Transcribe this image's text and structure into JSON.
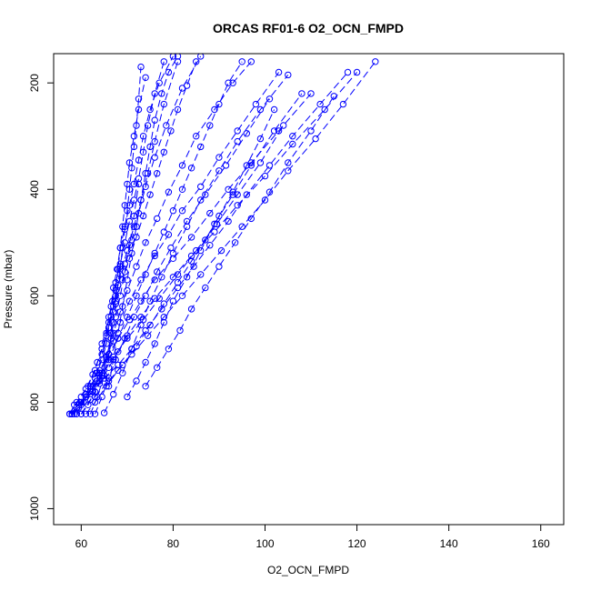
{
  "chart_data": {
    "type": "line",
    "title": "ORCAS RF01-6 O2_OCN_FMPD",
    "xlabel": "O2_OCN_FMPD",
    "ylabel": "Pressure (mbar)",
    "xlim": [
      54,
      165
    ],
    "ylim": [
      1030,
      145
    ],
    "y_inverted": true,
    "x_ticks": [
      60,
      80,
      100,
      120,
      140,
      160
    ],
    "y_ticks": [
      200,
      400,
      600,
      800,
      1000
    ],
    "grid": false,
    "legend": "none",
    "series_color": "#0000ff",
    "marker": "open-circle",
    "line_style": "dashed",
    "series": [
      {
        "x": [
          57.5,
          58.5,
          60,
          61.5,
          62.5,
          63.5,
          64.5,
          65.5,
          66,
          66.8,
          67.5,
          68.5,
          69.5,
          70.5,
          71.5,
          72.5,
          73.5,
          74.5,
          76,
          78
        ],
        "y": [
          822,
          805,
          790,
          770,
          748,
          725,
          700,
          670,
          640,
          610,
          575,
          540,
          500,
          460,
          420,
          380,
          330,
          280,
          220,
          160
        ]
      },
      {
        "x": [
          58,
          59,
          61,
          63,
          64.5,
          65.5,
          66,
          66.5,
          67,
          67.8,
          68.5,
          69.5,
          70.5,
          71.5,
          72.5,
          73.5,
          75,
          77,
          80
        ],
        "y": [
          822,
          810,
          785,
          755,
          720,
          690,
          660,
          620,
          585,
          550,
          510,
          470,
          430,
          390,
          345,
          300,
          250,
          200,
          150
        ]
      },
      {
        "x": [
          59,
          60.5,
          62,
          63.5,
          64.5,
          65.5,
          66.5,
          67.5,
          68.5,
          70,
          71.5,
          73,
          74.5,
          76,
          78,
          81
        ],
        "y": [
          822,
          800,
          775,
          745,
          710,
          675,
          640,
          600,
          560,
          515,
          470,
          420,
          370,
          310,
          240,
          160
        ]
      },
      {
        "x": [
          57.5,
          59,
          61,
          63,
          64.5,
          66,
          67,
          68,
          69.5,
          71,
          72.5,
          74,
          76,
          78.5,
          82,
          86
        ],
        "y": [
          822,
          800,
          775,
          740,
          700,
          660,
          620,
          580,
          540,
          495,
          445,
          395,
          340,
          280,
          210,
          150
        ]
      },
      {
        "x": [
          60,
          61.5,
          63,
          64.5,
          65.5,
          66.5,
          67,
          67.5,
          68,
          68.5,
          69,
          69.5,
          70,
          70.5,
          71,
          71.5,
          72,
          72.5,
          73
        ],
        "y": [
          822,
          805,
          780,
          750,
          715,
          680,
          650,
          615,
          580,
          545,
          510,
          475,
          440,
          400,
          360,
          320,
          280,
          230,
          170
        ]
      },
      {
        "x": [
          62,
          63.5,
          65,
          66,
          66.5,
          67,
          67.5,
          68,
          68.5,
          69,
          69.5,
          70,
          70.5,
          71.5,
          72.5,
          74
        ],
        "y": [
          822,
          790,
          750,
          710,
          670,
          630,
          590,
          550,
          510,
          470,
          430,
          390,
          350,
          300,
          250,
          190
        ]
      },
      {
        "x": [
          58,
          60,
          62.5,
          64.5,
          66,
          67,
          68.5,
          70,
          72,
          74,
          76.5,
          79,
          82,
          85,
          89,
          93,
          97
        ],
        "y": [
          822,
          805,
          780,
          745,
          710,
          670,
          630,
          590,
          545,
          500,
          455,
          405,
          355,
          300,
          250,
          200,
          160
        ]
      },
      {
        "x": [
          59,
          61,
          63.5,
          65.5,
          67,
          68.5,
          70.5,
          73,
          76,
          79,
          82,
          86,
          90,
          94,
          98,
          103
        ],
        "y": [
          822,
          790,
          760,
          720,
          685,
          650,
          610,
          570,
          525,
          485,
          440,
          395,
          340,
          290,
          240,
          180
        ]
      },
      {
        "x": [
          58.5,
          60,
          62,
          64,
          66,
          68,
          70.5,
          73,
          76,
          80,
          84,
          88,
          92,
          97,
          103,
          110
        ],
        "y": [
          822,
          800,
          770,
          740,
          710,
          680,
          645,
          610,
          570,
          530,
          490,
          445,
          400,
          350,
          290,
          220
        ]
      },
      {
        "x": [
          60,
          62,
          64,
          66,
          68,
          70,
          73,
          76,
          80,
          84,
          89,
          94,
          100,
          106,
          113,
          120
        ],
        "y": [
          822,
          795,
          765,
          735,
          705,
          675,
          640,
          605,
          565,
          525,
          480,
          430,
          375,
          315,
          250,
          180
        ]
      },
      {
        "x": [
          61,
          63,
          65.5,
          68,
          71,
          74.5,
          78,
          82,
          86,
          90.5,
          95,
          100,
          105,
          111,
          117,
          124
        ],
        "y": [
          822,
          800,
          770,
          740,
          710,
          675,
          640,
          600,
          560,
          515,
          470,
          420,
          365,
          305,
          240,
          160
        ]
      },
      {
        "x": [
          57.5,
          59.5,
          62,
          64.5,
          67,
          70,
          73.5,
          77,
          81,
          85,
          89.5,
          94,
          99,
          104
        ],
        "y": [
          822,
          805,
          780,
          750,
          715,
          680,
          645,
          605,
          560,
          515,
          465,
          410,
          350,
          280
        ]
      },
      {
        "x": [
          60,
          62.5,
          65,
          68,
          71,
          74,
          77.5,
          81,
          84.5,
          88,
          92,
          96,
          101,
          106,
          112,
          118
        ],
        "y": [
          800,
          780,
          755,
          730,
          700,
          665,
          625,
          585,
          545,
          505,
          460,
          410,
          355,
          300,
          240,
          180
        ]
      },
      {
        "x": [
          63,
          66,
          69,
          72,
          75,
          78,
          81,
          84,
          87,
          90,
          93,
          96,
          99,
          102
        ],
        "y": [
          790,
          760,
          730,
          695,
          655,
          615,
          575,
          535,
          495,
          450,
          405,
          355,
          305,
          250
        ]
      },
      {
        "x": [
          64,
          66,
          68,
          70,
          72,
          74,
          76,
          78,
          80,
          82,
          84,
          86,
          88,
          90,
          92,
          95
        ],
        "y": [
          760,
          720,
          680,
          640,
          600,
          560,
          520,
          480,
          440,
          400,
          360,
          320,
          280,
          240,
          200,
          160
        ]
      },
      {
        "x": [
          65,
          67,
          69,
          71,
          73,
          75,
          77.5,
          80,
          83,
          86,
          90,
          94,
          99,
          105
        ],
        "y": [
          820,
          785,
          745,
          700,
          655,
          610,
          565,
          520,
          470,
          420,
          365,
          310,
          250,
          185
        ]
      },
      {
        "x": [
          66,
          67,
          68,
          69,
          70,
          71,
          72,
          73,
          74,
          75,
          76,
          77.5,
          79,
          81
        ],
        "y": [
          770,
          720,
          670,
          620,
          570,
          520,
          470,
          420,
          370,
          320,
          270,
          220,
          180,
          150
        ]
      },
      {
        "x": [
          70,
          72,
          74,
          76,
          78,
          80,
          83,
          86,
          89,
          93,
          97,
          102,
          108
        ],
        "y": [
          790,
          760,
          725,
          690,
          650,
          610,
          565,
          515,
          465,
          410,
          355,
          290,
          220
        ]
      },
      {
        "x": [
          74,
          76.5,
          79,
          81.5,
          84,
          87,
          90,
          93.5,
          97,
          101,
          105,
          110,
          115
        ],
        "y": [
          770,
          735,
          700,
          665,
          625,
          585,
          545,
          500,
          455,
          405,
          350,
          290,
          225
        ]
      },
      {
        "x": [
          64.5,
          66,
          67.5,
          69,
          70.5,
          72,
          73.5,
          75,
          76.5,
          78,
          79.5,
          81,
          83,
          85
        ],
        "y": [
          690,
          650,
          610,
          570,
          530,
          490,
          450,
          410,
          370,
          330,
          290,
          250,
          205,
          160
        ]
      },
      {
        "x": [
          58,
          59.5,
          61,
          62.5,
          64,
          65.5,
          66.5,
          67.5,
          68.5,
          69.5,
          70.5,
          71.5,
          72.5
        ],
        "y": [
          822,
          810,
          790,
          770,
          745,
          715,
          680,
          640,
          600,
          555,
          505,
          450,
          390
        ]
      },
      {
        "x": [
          63,
          64.5,
          66,
          67.5,
          69.5,
          71.5,
          74,
          76.5,
          79.5,
          83,
          87,
          91.5,
          96,
          101
        ],
        "y": [
          822,
          790,
          755,
          720,
          680,
          640,
          600,
          555,
          510,
          460,
          410,
          355,
          295,
          230
        ]
      }
    ]
  }
}
